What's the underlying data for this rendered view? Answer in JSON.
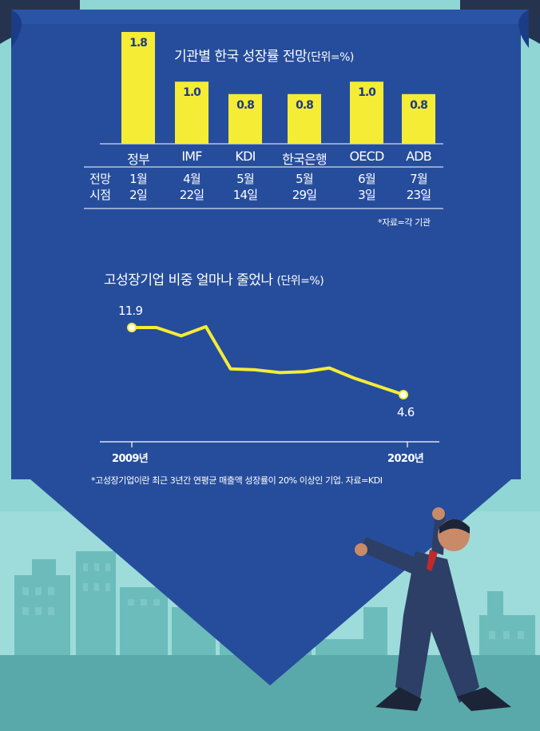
{
  "colors": {
    "panel": "#264d9c",
    "bar": "#f5ec36",
    "line": "#f5ec36",
    "sky": "#8fd6d4",
    "buildings": "#6cbcbc"
  },
  "chart_data": [
    {
      "type": "bar",
      "title": "기관별 한국 성장률 전망",
      "unit": "(단위=%)",
      "categories": [
        "정부",
        "IMF",
        "KDI",
        "한국은행",
        "OECD",
        "ADB"
      ],
      "values": [
        1.8,
        1.0,
        0.8,
        0.8,
        1.0,
        0.8
      ],
      "value_labels": [
        "1.8",
        "1.0",
        "0.8",
        "0.8",
        "1.0",
        "0.8"
      ],
      "row_header": [
        "전망",
        "시점"
      ],
      "schedule": [
        [
          "1월",
          "2일"
        ],
        [
          "4월",
          "22일"
        ],
        [
          "5월",
          "14일"
        ],
        [
          "5월",
          "29일"
        ],
        [
          "6월",
          "3일"
        ],
        [
          "7월",
          "23일"
        ]
      ],
      "source": "*자료=각 기관"
    },
    {
      "type": "line",
      "title": "고성장기업 비중 얼마나 줄었나",
      "unit": "(단위=%)",
      "x_labels": [
        "2009년",
        "2020년"
      ],
      "x": [
        2009,
        2010,
        2011,
        2012,
        2013,
        2014,
        2015,
        2016,
        2017,
        2018,
        2019,
        2020
      ],
      "values": [
        11.9,
        11.9,
        11.0,
        12.0,
        7.4,
        7.3,
        7.0,
        7.1,
        7.5,
        6.4,
        5.5,
        4.6
      ],
      "start_label": "11.9",
      "end_label": "4.6",
      "note": "*고성장기업이란 최근 3년간 연평균 매출액 성장률이 20% 이상인 기업. 자료=KDI"
    }
  ]
}
